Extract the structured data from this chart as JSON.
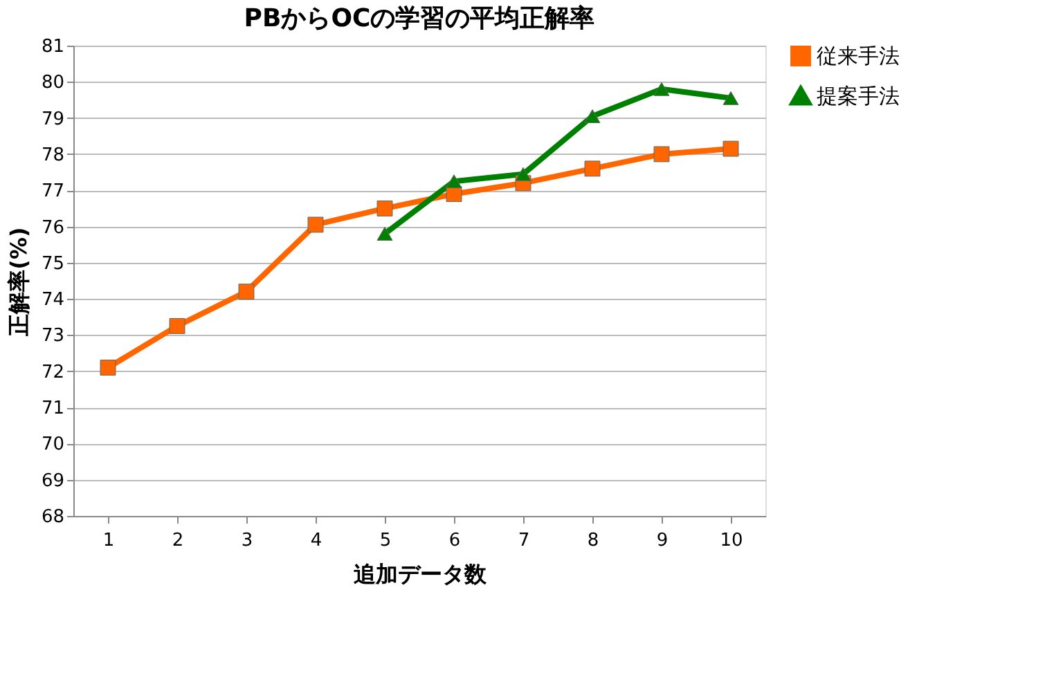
{
  "chart_data": {
    "type": "line",
    "title": "PBからOCの学習の平均正解率",
    "xlabel": "追加データ数",
    "ylabel": "正解率(%)",
    "categories": [
      "1",
      "2",
      "3",
      "4",
      "5",
      "6",
      "7",
      "8",
      "9",
      "10"
    ],
    "series": [
      {
        "name": "従来手法",
        "color": "#ff6600",
        "marker": "square",
        "values": [
          72.1,
          73.25,
          74.2,
          76.05,
          76.5,
          76.9,
          77.2,
          77.6,
          78.0,
          78.15
        ]
      },
      {
        "name": "提案手法",
        "color": "#008000",
        "marker": "triangle",
        "values": [
          null,
          null,
          null,
          null,
          75.8,
          77.25,
          77.45,
          79.05,
          79.8,
          79.55
        ]
      }
    ],
    "ylim": [
      68,
      81
    ],
    "yticks": [
      68,
      69,
      70,
      71,
      72,
      73,
      74,
      75,
      76,
      77,
      78,
      79,
      80,
      81
    ],
    "grid": "y",
    "legend": "right",
    "line_style": "solid"
  }
}
